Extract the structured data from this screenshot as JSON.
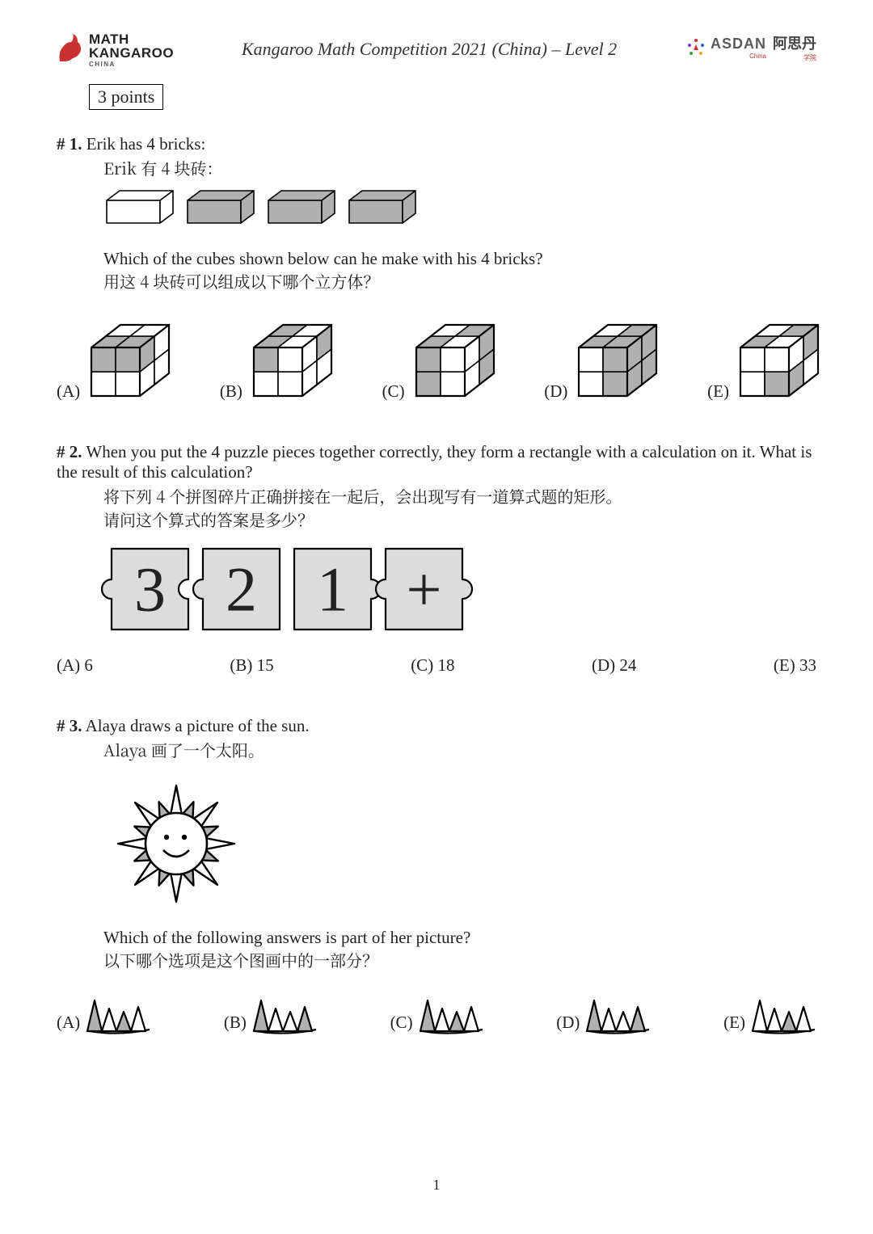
{
  "colors": {
    "text": "#222222",
    "shade": "#b0b0b0",
    "shade_puzzle": "#dcdcdc",
    "line": "#000000",
    "white": "#ffffff",
    "logo_red": "#c83232",
    "asdan_gray": "#5a5a5a"
  },
  "header": {
    "title": "Kangaroo Math Competition 2021 (China) – Level 2",
    "left_logo": {
      "line1": "MATH",
      "line2": "KANGAROO",
      "sub": "CHINA"
    },
    "right_logo": {
      "en": "ASDAN",
      "en_sub": "China",
      "cn": "阿思丹",
      "cn_sub": "学院"
    }
  },
  "section_label": "3 points",
  "page_number": "1",
  "q1": {
    "num": "1.",
    "text_en": "Erik has 4 bricks:",
    "text_cn": "Erik 有 4 块砖：",
    "q_en": "Which of the cubes shown below can he make with his 4 bricks?",
    "q_cn": "用这 4 块砖可以组成以下哪个立方体？",
    "bricks": [
      {
        "fill": "white"
      },
      {
        "fill": "shade"
      },
      {
        "fill": "shade"
      },
      {
        "fill": "shade"
      }
    ],
    "answers": [
      "(A)",
      "(B)",
      "(C)",
      "(D)",
      "(E)"
    ]
  },
  "q2": {
    "num": "2.",
    "text_en": "When you put the 4 puzzle pieces together correctly, they form a rectangle with a calculation on it. What is the result of this calculation?",
    "text_cn1": "将下列 4 个拼图碎片正确拼接在一起后，会出现写有一道算式题的矩形。",
    "text_cn2": "请问这个算式的答案是多少？",
    "pieces": [
      "3",
      "2",
      "1",
      "+"
    ],
    "answers": [
      {
        "label": "(A)",
        "val": "6"
      },
      {
        "label": "(B)",
        "val": "15"
      },
      {
        "label": "(C)",
        "val": "18"
      },
      {
        "label": "(D)",
        "val": "24"
      },
      {
        "label": "(E)",
        "val": "33"
      }
    ]
  },
  "q3": {
    "num": "3.",
    "text_en": "Alaya draws a picture of the sun.",
    "text_cn": "Alaya 画了一个太阳。",
    "q_en": "Which of the following answers is part of her picture?",
    "q_cn": "以下哪个选项是这个图画中的一部分？",
    "answers": [
      "(A)",
      "(B)",
      "(C)",
      "(D)",
      "(E)"
    ]
  }
}
